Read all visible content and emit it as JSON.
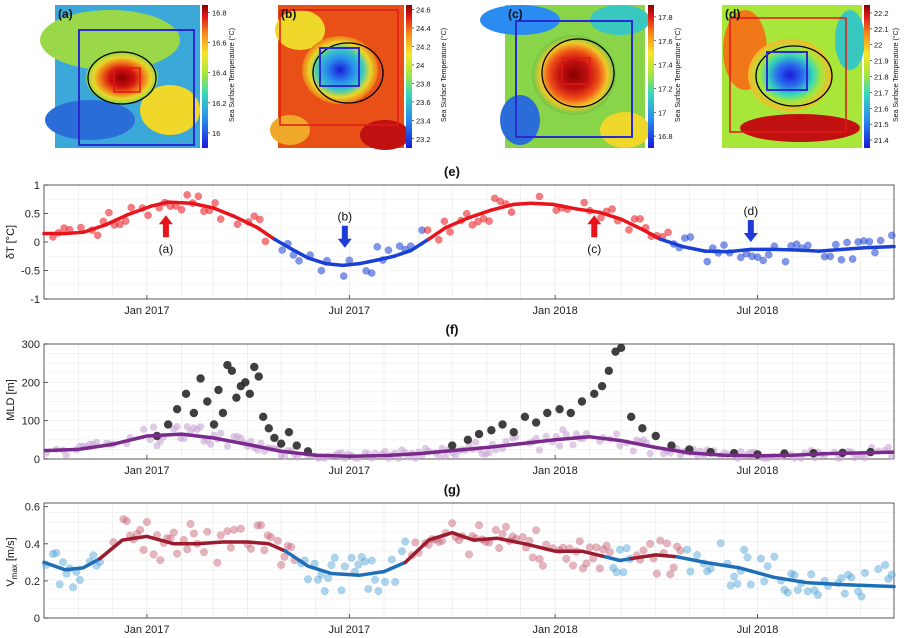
{
  "maps": [
    {
      "label": "(a)",
      "cbar_ticks": [
        "16.8",
        "16.6",
        "16.4",
        "16.2",
        "16"
      ],
      "cbar_range": [
        15.9,
        16.85
      ],
      "cbar_title": "Sea Surface Temperature (°C)"
    },
    {
      "label": "(b)",
      "cbar_ticks": [
        "24.6",
        "24.4",
        "24.2",
        "24",
        "23.8",
        "23.6",
        "23.4",
        "23.2"
      ],
      "cbar_range": [
        23.1,
        24.65
      ],
      "cbar_title": "Sea Surface Temperature (°C)"
    },
    {
      "label": "(c)",
      "cbar_ticks": [
        "17.8",
        "17.6",
        "17.4",
        "17.2",
        "17",
        "16.8"
      ],
      "cbar_range": [
        16.7,
        17.9
      ],
      "cbar_title": "Sea Surface Temperature (°C)"
    },
    {
      "label": "(d)",
      "cbar_ticks": [
        "22.2",
        "22.1",
        "22",
        "21.9",
        "21.8",
        "21.7",
        "21.6",
        "21.5",
        "21.4"
      ],
      "cbar_range": [
        21.35,
        22.25
      ],
      "cbar_title": "Sea Surface Temperature (°C)"
    }
  ],
  "chart_data": [
    {
      "type": "scatter",
      "panel_label": "(e)",
      "ylabel": "δT [°C]",
      "ylim": [
        -1,
        1
      ],
      "yticks": [
        "1",
        "0.5",
        "0",
        "-0.5",
        "-1"
      ],
      "xticks": [
        "Jan 2017",
        "Jul 2017",
        "Jan 2018",
        "Jul 2018"
      ],
      "xlim": [
        "2016-10-01",
        "2018-10-31"
      ],
      "grid": true,
      "annotations": [
        {
          "text": "(a)",
          "date": "2017-01-18",
          "direction": "up",
          "color": "#e8141c"
        },
        {
          "text": "(b)",
          "date": "2017-06-27",
          "direction": "down",
          "color": "#1f3bd6"
        },
        {
          "text": "(c)",
          "date": "2018-02-05",
          "direction": "up",
          "color": "#e8141c"
        },
        {
          "text": "(d)",
          "date": "2018-06-25",
          "direction": "down",
          "color": "#1f3bd6"
        }
      ],
      "series": [
        {
          "kind": "line",
          "color_warm": "#e8141c",
          "color_cold": "#1a3fd4",
          "points": [
            [
              "2016-10-01",
              0.15
            ],
            [
              "2016-10-20",
              0.15
            ],
            [
              "2016-11-05",
              0.17
            ],
            [
              "2016-11-25",
              0.3
            ],
            [
              "2016-12-15",
              0.48
            ],
            [
              "2017-01-05",
              0.63
            ],
            [
              "2017-01-20",
              0.7
            ],
            [
              "2017-02-10",
              0.68
            ],
            [
              "2017-03-01",
              0.6
            ],
            [
              "2017-03-20",
              0.45
            ],
            [
              "2017-04-10",
              0.25
            ],
            [
              "2017-04-25",
              0.05
            ],
            [
              "2017-05-10",
              -0.12
            ],
            [
              "2017-05-25",
              -0.28
            ],
            [
              "2017-06-10",
              -0.38
            ],
            [
              "2017-06-25",
              -0.41
            ],
            [
              "2017-07-10",
              -0.38
            ],
            [
              "2017-07-25",
              -0.32
            ],
            [
              "2017-08-10",
              -0.25
            ],
            [
              "2017-08-25",
              -0.15
            ],
            [
              "2017-09-10",
              0.05
            ],
            [
              "2017-09-25",
              0.25
            ],
            [
              "2017-10-15",
              0.42
            ],
            [
              "2017-11-05",
              0.56
            ],
            [
              "2017-11-25",
              0.66
            ],
            [
              "2017-12-10",
              0.68
            ],
            [
              "2017-12-30",
              0.66
            ],
            [
              "2018-01-20",
              0.58
            ],
            [
              "2018-02-10",
              0.52
            ],
            [
              "2018-03-01",
              0.4
            ],
            [
              "2018-03-20",
              0.22
            ],
            [
              "2018-04-05",
              0.05
            ],
            [
              "2018-04-25",
              -0.08
            ],
            [
              "2018-05-15",
              -0.16
            ],
            [
              "2018-06-05",
              -0.17
            ],
            [
              "2018-06-25",
              -0.13
            ],
            [
              "2018-07-15",
              -0.13
            ],
            [
              "2018-08-05",
              -0.14
            ],
            [
              "2018-08-25",
              -0.16
            ],
            [
              "2018-09-15",
              -0.13
            ],
            [
              "2018-10-05",
              -0.1
            ],
            [
              "2018-10-31",
              -0.08
            ]
          ]
        },
        {
          "kind": "dots",
          "color_warm": "#e8141c",
          "color_cold": "#1a3fd4",
          "spread": 0.12
        }
      ]
    },
    {
      "type": "scatter",
      "panel_label": "(f)",
      "ylabel": "MLD [m]",
      "ylim": [
        0,
        300
      ],
      "yticks": [
        "300",
        "200",
        "100",
        "0"
      ],
      "xticks": [
        "Jan 2017",
        "Jul 2017",
        "Jan 2018",
        "Jul 2018"
      ],
      "xlim": [
        "2016-10-01",
        "2018-10-31"
      ],
      "grid": true,
      "series": [
        {
          "kind": "line",
          "color": "#7a2a8c",
          "points": [
            [
              "2016-10-01",
              22
            ],
            [
              "2016-11-01",
              25
            ],
            [
              "2016-12-01",
              38
            ],
            [
              "2017-01-01",
              60
            ],
            [
              "2017-02-01",
              65
            ],
            [
              "2017-03-01",
              55
            ],
            [
              "2017-04-01",
              38
            ],
            [
              "2017-05-01",
              20
            ],
            [
              "2017-06-01",
              10
            ],
            [
              "2017-07-01",
              7
            ],
            [
              "2017-08-01",
              9
            ],
            [
              "2017-09-01",
              14
            ],
            [
              "2017-10-01",
              22
            ],
            [
              "2017-11-01",
              30
            ],
            [
              "2017-12-01",
              40
            ],
            [
              "2018-01-01",
              50
            ],
            [
              "2018-02-01",
              58
            ],
            [
              "2018-03-01",
              48
            ],
            [
              "2018-04-01",
              30
            ],
            [
              "2018-05-01",
              16
            ],
            [
              "2018-06-01",
              10
            ],
            [
              "2018-07-01",
              8
            ],
            [
              "2018-08-01",
              10
            ],
            [
              "2018-09-01",
              14
            ],
            [
              "2018-10-31",
              18
            ]
          ]
        },
        {
          "kind": "dots",
          "color": "#c9a6d6",
          "spread": 18
        },
        {
          "kind": "black_dots",
          "color": "#2a2a2a",
          "points": [
            [
              "2017-01-10",
              60
            ],
            [
              "2017-01-20",
              90
            ],
            [
              "2017-01-28",
              130
            ],
            [
              "2017-02-05",
              170
            ],
            [
              "2017-02-12",
              120
            ],
            [
              "2017-02-18",
              210
            ],
            [
              "2017-02-24",
              150
            ],
            [
              "2017-03-02",
              90
            ],
            [
              "2017-03-06",
              180
            ],
            [
              "2017-03-10",
              120
            ],
            [
              "2017-03-14",
              245
            ],
            [
              "2017-03-18",
              230
            ],
            [
              "2017-03-22",
              160
            ],
            [
              "2017-03-26",
              190
            ],
            [
              "2017-03-30",
              200
            ],
            [
              "2017-04-03",
              170
            ],
            [
              "2017-04-07",
              240
            ],
            [
              "2017-04-11",
              215
            ],
            [
              "2017-04-15",
              110
            ],
            [
              "2017-04-20",
              80
            ],
            [
              "2017-04-25",
              55
            ],
            [
              "2017-05-01",
              40
            ],
            [
              "2017-05-08",
              70
            ],
            [
              "2017-05-15",
              35
            ],
            [
              "2017-05-25",
              20
            ],
            [
              "2017-10-01",
              35
            ],
            [
              "2017-10-15",
              50
            ],
            [
              "2017-10-25",
              65
            ],
            [
              "2017-11-05",
              75
            ],
            [
              "2017-11-15",
              90
            ],
            [
              "2017-11-25",
              70
            ],
            [
              "2017-12-05",
              110
            ],
            [
              "2017-12-15",
              95
            ],
            [
              "2017-12-25",
              120
            ],
            [
              "2018-01-05",
              130
            ],
            [
              "2018-01-15",
              120
            ],
            [
              "2018-01-25",
              150
            ],
            [
              "2018-02-05",
              170
            ],
            [
              "2018-02-12",
              190
            ],
            [
              "2018-02-18",
              230
            ],
            [
              "2018-02-24",
              280
            ],
            [
              "2018-03-01",
              290
            ],
            [
              "2018-03-10",
              110
            ],
            [
              "2018-03-20",
              80
            ],
            [
              "2018-04-01",
              60
            ],
            [
              "2018-04-15",
              35
            ],
            [
              "2018-05-01",
              25
            ],
            [
              "2018-05-20",
              18
            ],
            [
              "2018-06-10",
              15
            ],
            [
              "2018-07-01",
              12
            ],
            [
              "2018-07-25",
              14
            ],
            [
              "2018-08-20",
              15
            ],
            [
              "2018-09-15",
              16
            ],
            [
              "2018-10-10",
              18
            ]
          ]
        }
      ]
    },
    {
      "type": "scatter",
      "panel_label": "(g)",
      "ylabel": "V_max [m/s]",
      "ylim": [
        0,
        0.62
      ],
      "yticks": [
        "0.6",
        "0.4",
        "0.2",
        "0"
      ],
      "xticks": [
        "Jan 2017",
        "Jul 2017",
        "Jan 2018",
        "Jul 2018"
      ],
      "xlim": [
        "2016-10-01",
        "2018-10-31"
      ],
      "grid": true,
      "series": [
        {
          "kind": "line",
          "color_warm": "#9b1b2f",
          "color_cold": "#1e6fb8",
          "segments": [
            {
              "color": "cold",
              "points": [
                [
                  "2016-10-01",
                  0.3
                ],
                [
                  "2016-10-20",
                  0.26
                ],
                [
                  "2016-11-05",
                  0.27
                ],
                [
                  "2016-11-20",
                  0.32
                ]
              ]
            },
            {
              "color": "warm",
              "points": [
                [
                  "2016-11-20",
                  0.32
                ],
                [
                  "2016-12-10",
                  0.42
                ],
                [
                  "2017-01-01",
                  0.44
                ],
                [
                  "2017-01-25",
                  0.4
                ],
                [
                  "2017-02-15",
                  0.4
                ],
                [
                  "2017-03-10",
                  0.41
                ],
                [
                  "2017-04-01",
                  0.41
                ],
                [
                  "2017-04-20",
                  0.4
                ],
                [
                  "2017-05-05",
                  0.36
                ]
              ]
            },
            {
              "color": "cold",
              "points": [
                [
                  "2017-05-05",
                  0.36
                ],
                [
                  "2017-05-25",
                  0.28
                ],
                [
                  "2017-06-15",
                  0.24
                ],
                [
                  "2017-07-10",
                  0.23
                ],
                [
                  "2017-08-01",
                  0.25
                ],
                [
                  "2017-08-20",
                  0.3
                ]
              ]
            },
            {
              "color": "warm",
              "points": [
                [
                  "2017-08-20",
                  0.3
                ],
                [
                  "2017-09-10",
                  0.42
                ],
                [
                  "2017-10-01",
                  0.46
                ],
                [
                  "2017-10-20",
                  0.42
                ],
                [
                  "2017-11-10",
                  0.43
                ],
                [
                  "2017-12-05",
                  0.4
                ],
                [
                  "2018-01-01",
                  0.36
                ],
                [
                  "2018-01-25",
                  0.36
                ],
                [
                  "2018-02-15",
                  0.33
                ]
              ]
            },
            {
              "color": "cold",
              "points": [
                [
                  "2018-02-15",
                  0.33
                ],
                [
                  "2018-02-28",
                  0.31
                ],
                [
                  "2018-03-10",
                  0.32
                ]
              ]
            },
            {
              "color": "warm",
              "points": [
                [
                  "2018-03-10",
                  0.32
                ],
                [
                  "2018-04-01",
                  0.34
                ],
                [
                  "2018-04-20",
                  0.33
                ]
              ]
            },
            {
              "color": "cold",
              "points": [
                [
                  "2018-04-20",
                  0.33
                ],
                [
                  "2018-05-15",
                  0.3
                ],
                [
                  "2018-06-15",
                  0.27
                ],
                [
                  "2018-07-15",
                  0.22
                ],
                [
                  "2018-08-15",
                  0.19
                ],
                [
                  "2018-09-15",
                  0.18
                ],
                [
                  "2018-10-31",
                  0.17
                ]
              ]
            }
          ]
        },
        {
          "kind": "dots",
          "color_warm": "#c65a6e",
          "color_cold": "#4a9fd6",
          "spread": 0.07
        }
      ]
    }
  ]
}
